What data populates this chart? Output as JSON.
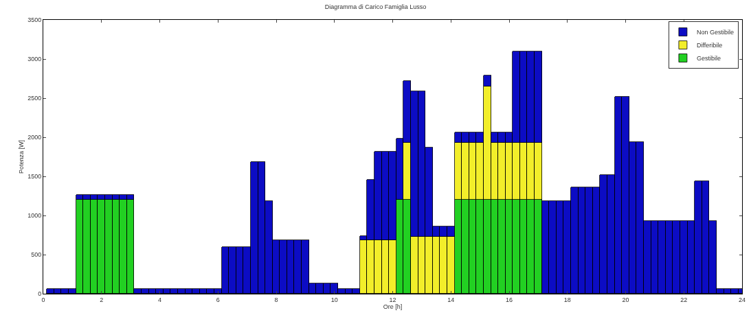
{
  "chart_data": {
    "type": "bar",
    "stacked": true,
    "title": "Diagramma di Carico Famiglia Lusso",
    "xlabel": "Ore [h]",
    "ylabel": "Potenza [W]",
    "x": [
      0.25,
      0.5,
      0.75,
      1,
      1.25,
      1.5,
      1.75,
      2,
      2.25,
      2.5,
      2.75,
      3,
      3.25,
      3.5,
      3.75,
      4,
      4.25,
      4.5,
      4.75,
      5,
      5.25,
      5.5,
      5.75,
      6,
      6.25,
      6.5,
      6.75,
      7,
      7.25,
      7.5,
      7.75,
      8,
      8.25,
      8.5,
      8.75,
      9,
      9.25,
      9.5,
      9.75,
      10,
      10.25,
      10.5,
      10.75,
      11,
      11.25,
      11.5,
      11.75,
      12,
      12.25,
      12.5,
      12.75,
      13,
      13.25,
      13.5,
      13.75,
      14,
      14.25,
      14.5,
      14.75,
      15,
      15.25,
      15.5,
      15.75,
      16,
      16.25,
      16.5,
      16.75,
      17,
      17.25,
      17.5,
      17.75,
      18,
      18.25,
      18.5,
      18.75,
      19,
      19.25,
      19.5,
      19.75,
      20,
      20.25,
      20.5,
      20.75,
      21,
      21.25,
      21.5,
      21.75,
      22,
      22.25,
      22.5,
      22.75,
      23,
      23.25,
      23.5,
      23.75,
      24
    ],
    "series": [
      {
        "name": "Gestibile",
        "color": "#22d022",
        "values": [
          null,
          null,
          null,
          null,
          1200,
          1200,
          1200,
          1200,
          1200,
          1200,
          1200,
          1200,
          null,
          null,
          null,
          null,
          null,
          null,
          null,
          null,
          null,
          null,
          null,
          null,
          null,
          null,
          null,
          null,
          null,
          null,
          null,
          null,
          null,
          null,
          null,
          null,
          null,
          null,
          null,
          null,
          null,
          null,
          null,
          null,
          null,
          null,
          null,
          null,
          1200,
          1200,
          null,
          null,
          null,
          null,
          null,
          null,
          1200,
          1200,
          1200,
          1200,
          1200,
          1200,
          1200,
          1200,
          1200,
          1200,
          1200,
          1200,
          null,
          null,
          null,
          null,
          null,
          null,
          null,
          null,
          null,
          null,
          null,
          null,
          null,
          null,
          null,
          null,
          null,
          null,
          null,
          null,
          null,
          null,
          null,
          null,
          null,
          null,
          null,
          null
        ]
      },
      {
        "name": "Differibile",
        "color": "#f2ee2a",
        "values": [
          null,
          null,
          null,
          null,
          null,
          null,
          null,
          null,
          null,
          null,
          null,
          null,
          null,
          null,
          null,
          null,
          null,
          null,
          null,
          null,
          null,
          null,
          null,
          null,
          null,
          null,
          null,
          null,
          null,
          null,
          null,
          null,
          null,
          null,
          null,
          null,
          null,
          null,
          null,
          null,
          null,
          null,
          null,
          680,
          680,
          680,
          680,
          680,
          null,
          730,
          730,
          730,
          730,
          730,
          730,
          730,
          730,
          730,
          730,
          730,
          1450,
          730,
          730,
          730,
          730,
          730,
          730,
          730,
          null,
          null,
          null,
          null,
          null,
          null,
          null,
          null,
          null,
          null,
          null,
          null,
          null,
          null,
          null,
          null,
          null,
          null,
          null,
          null,
          null,
          null,
          null,
          null,
          null,
          null,
          null,
          null
        ]
      },
      {
        "name": "Non Gestibile",
        "color": "#0c0cc4",
        "values": [
          60,
          60,
          60,
          60,
          60,
          60,
          60,
          60,
          60,
          60,
          60,
          60,
          60,
          60,
          60,
          60,
          60,
          60,
          60,
          60,
          60,
          60,
          60,
          60,
          600,
          600,
          600,
          600,
          1680,
          1680,
          1180,
          680,
          680,
          680,
          680,
          680,
          130,
          130,
          130,
          130,
          60,
          60,
          60,
          60,
          780,
          1140,
          1140,
          1140,
          780,
          790,
          1860,
          1860,
          1140,
          130,
          130,
          130,
          130,
          130,
          130,
          130,
          140,
          130,
          130,
          130,
          1170,
          1170,
          1170,
          1170,
          1180,
          1180,
          1180,
          1180,
          1360,
          1360,
          1360,
          1360,
          1520,
          1520,
          2520,
          2520,
          1940,
          1940,
          930,
          930,
          930,
          930,
          930,
          930,
          930,
          1440,
          1440,
          930,
          60,
          60,
          60,
          60
        ]
      }
    ],
    "xlim": [
      0,
      24
    ],
    "xticks": [
      0,
      2,
      4,
      6,
      8,
      10,
      12,
      14,
      16,
      18,
      20,
      22,
      24
    ],
    "ylim": [
      0,
      3500
    ],
    "yticks": [
      0,
      500,
      1000,
      1500,
      2000,
      2500,
      3000,
      3500
    ],
    "legend": "top right"
  }
}
